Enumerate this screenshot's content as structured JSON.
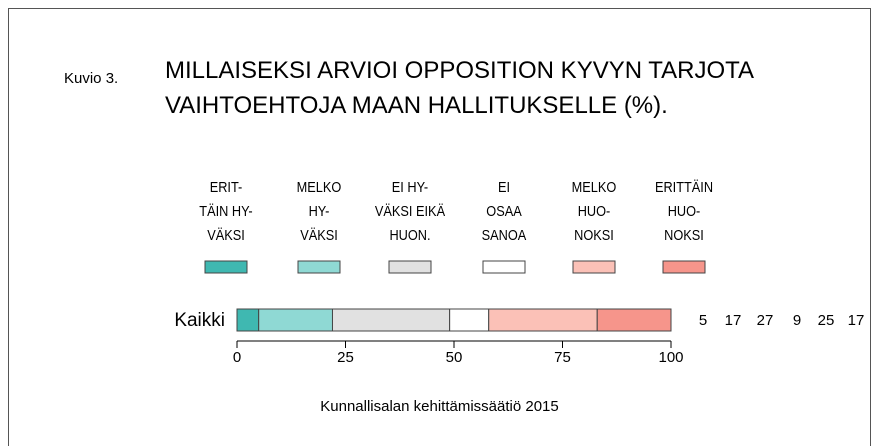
{
  "chart_data": {
    "type": "stacked-bar-horizontal",
    "figure_label": "Kuvio 3.",
    "title": "MILLAISEKSI ARVIOI OPPOSITION KYVYN TARJOTA\nVAIHTOEHTOJA MAAN HALLITUKSELLE (%).",
    "categories": [
      "Kaikki"
    ],
    "series": [
      {
        "name": "ERIT-\nTÄIN HY-\nVÄKSI",
        "color": "#3fb8b1",
        "values": [
          5
        ]
      },
      {
        "name": "MELKO\nHY-\nVÄKSI",
        "color": "#8fd9d4",
        "values": [
          17
        ]
      },
      {
        "name": "EI HY-\nVÄKSI EIKÄ\nHUON.",
        "color": "#e1e1e1",
        "values": [
          27
        ]
      },
      {
        "name": "EI\nOSAA\nSANOA",
        "color": "#ffffff",
        "values": [
          9
        ]
      },
      {
        "name": "MELKO\nHUO-\nNOKSI",
        "color": "#fbc1b7",
        "values": [
          25
        ]
      },
      {
        "name": "ERITTÄIN\nHUO-\nNOKSI",
        "color": "#f6958b",
        "values": [
          17
        ]
      }
    ],
    "xlim": [
      0,
      100
    ],
    "xticks": [
      0,
      25,
      50,
      75,
      100
    ],
    "source": "Kunnallisalan kehittämissäätiö 2015"
  }
}
